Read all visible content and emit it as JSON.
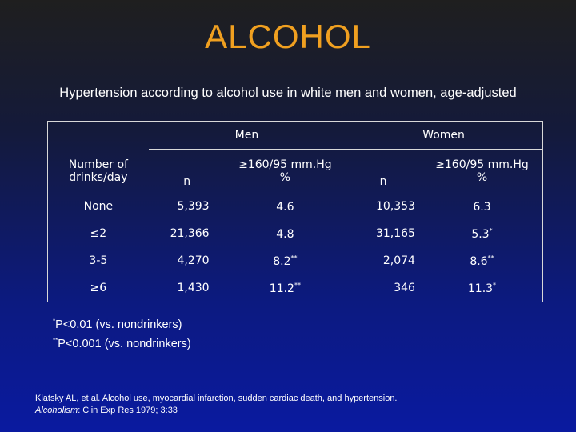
{
  "title": "ALCOHOL",
  "subtitle": "Hypertension according to alcohol use in white men and women, age-adjusted",
  "table": {
    "group_men": "Men",
    "group_women": "Women",
    "col_label": [
      "Number of",
      "drinks/day"
    ],
    "col_n": "n",
    "col_pct": [
      "≥160/95 mm.Hg",
      "%"
    ],
    "rows": [
      {
        "label": "None",
        "men_n": "5,393",
        "men_pct": "4.6",
        "men_sig": "",
        "women_n": "10,353",
        "women_pct": "6.3",
        "women_sig": ""
      },
      {
        "label": "≤2",
        "men_n": "21,366",
        "men_pct": "4.8",
        "men_sig": "",
        "women_n": "31,165",
        "women_pct": "5.3",
        "women_sig": "*"
      },
      {
        "label": "3-5",
        "men_n": "4,270",
        "men_pct": "8.2",
        "men_sig": "**",
        "women_n": "2,074",
        "women_pct": "8.6",
        "women_sig": "**"
      },
      {
        "label": "≥6",
        "men_n": "1,430",
        "men_pct": "11.2",
        "men_sig": "**",
        "women_n": "346",
        "women_pct": "11.3",
        "women_sig": "*"
      }
    ]
  },
  "footnotes": [
    {
      "mark": "*",
      "text": "P<0.01 (vs. nondrinkers)"
    },
    {
      "mark": "**",
      "text": "P<0.001 (vs. nondrinkers)"
    }
  ],
  "citation": {
    "line1": "Klatsky AL, et al. Alcohol use, myocardial infarction, sudden cardiac death, and hypertension.",
    "journal": "Alcoholism",
    "rest": ": Clin Exp Res 1979; 3:33"
  }
}
